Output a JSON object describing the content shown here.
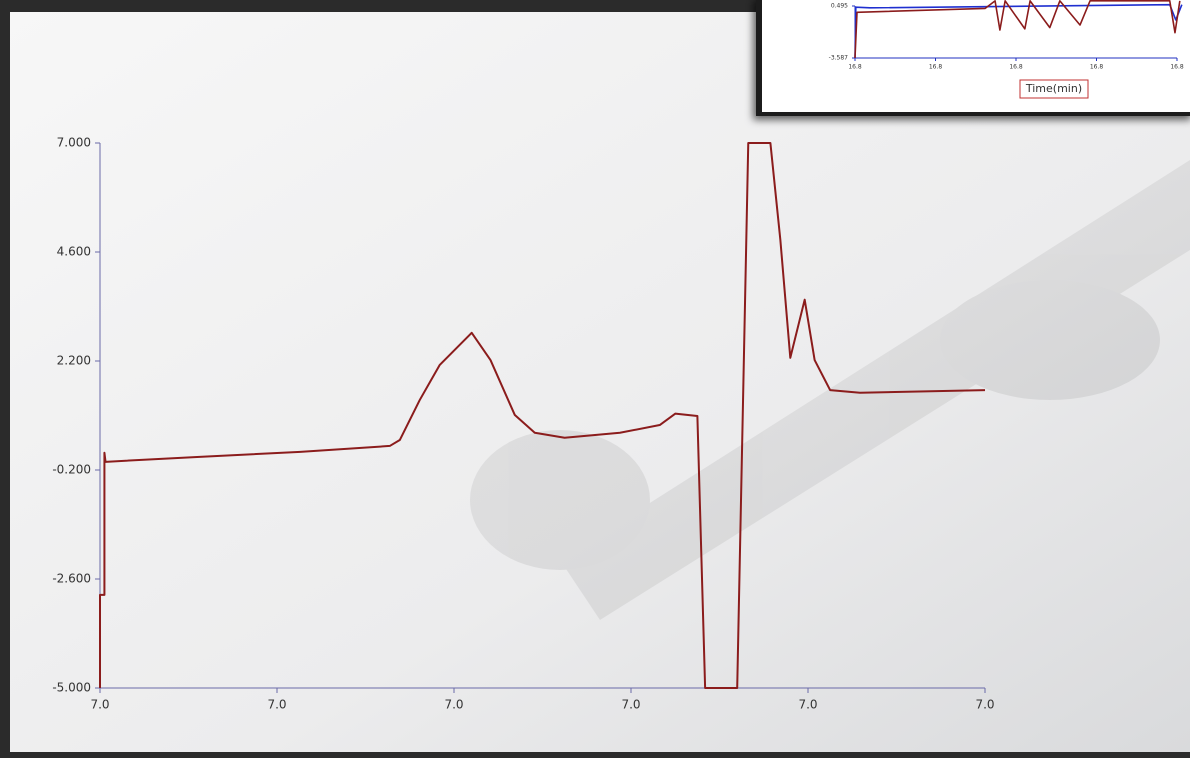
{
  "chart_data": [
    {
      "type": "line",
      "xlim": [
        6.96,
        7.04
      ],
      "xticks": [
        {
          "value": 6.96,
          "label": "7.0"
        },
        {
          "value": 6.976,
          "label": "7.0"
        },
        {
          "value": 6.992,
          "label": "7.0"
        },
        {
          "value": 7.008,
          "label": "7.0"
        },
        {
          "value": 7.024,
          "label": "7.0"
        },
        {
          "value": 7.04,
          "label": "7.0"
        }
      ],
      "ylim": [
        -5,
        7
      ],
      "yticks": [
        {
          "value": 7,
          "label": "7.000"
        },
        {
          "value": 4.6,
          "label": "4.600"
        },
        {
          "value": 2.2,
          "label": "2.200"
        },
        {
          "value": -0.2,
          "label": "-0.200"
        },
        {
          "value": -2.6,
          "label": "-2.600"
        },
        {
          "value": -5,
          "label": "-5.000"
        }
      ],
      "series": [
        {
          "color": "#8b1c1c",
          "x": [
            6.96,
            6.96,
            6.9604,
            6.9604,
            6.9605,
            6.969,
            6.9781,
            6.9862,
            6.9871,
            6.9889,
            6.9907,
            6.9936,
            6.9953,
            6.9975,
            6.9993,
            7.002,
            7.007,
            7.0106,
            7.012,
            7.014,
            7.0147,
            7.0176,
            7.0186,
            7.0206,
            7.0215,
            7.0224,
            7.0237,
            7.0246,
            7.026,
            7.0287,
            7.04
          ],
          "values": [
            -5,
            -2.95,
            -2.95,
            0.18,
            -0.02,
            0.09,
            0.2,
            0.33,
            0.46,
            1.34,
            2.11,
            2.82,
            2.22,
            1.01,
            0.62,
            0.51,
            0.62,
            0.79,
            1.04,
            0.99,
            -5,
            -5,
            7,
            7,
            4.87,
            2.27,
            3.55,
            2.22,
            1.56,
            1.5,
            1.56
          ]
        }
      ]
    },
    {
      "type": "line",
      "x_label": "Time(min)",
      "xlim": [
        16.76,
        16.84
      ],
      "xticks": [
        {
          "value": 16.76,
          "label": "16.8"
        },
        {
          "value": 16.78,
          "label": "16.8"
        },
        {
          "value": 16.8,
          "label": "16.8"
        },
        {
          "value": 16.82,
          "label": "16.8"
        },
        {
          "value": 16.84,
          "label": "16.8"
        }
      ],
      "ylim": [
        -3.587,
        0.495
      ],
      "yticks": [
        0.495,
        -3.587
      ],
      "series": [
        {
          "color": "#1f2fd0",
          "x": [
            16.76,
            16.7602,
            16.7637,
            16.8382,
            16.8397,
            16.8412
          ],
          "values": [
            -3.587,
            0.4,
            0.35,
            0.6,
            -0.6,
            0.6
          ]
        },
        {
          "color": "#8b1c1c",
          "x": [
            16.76,
            16.7605,
            16.7923,
            16.7948,
            16.796,
            16.7973,
            16.8022,
            16.8035,
            16.8084,
            16.8109,
            16.8159,
            16.8184,
            16.8382,
            16.8395,
            16.8407
          ],
          "values": [
            -3.587,
            0,
            0.3,
            0.9,
            -1.39,
            0.9,
            -1.3,
            0.9,
            -1.2,
            0.9,
            -1,
            0.9,
            0.9,
            -1.6,
            0.9
          ]
        }
      ]
    }
  ]
}
